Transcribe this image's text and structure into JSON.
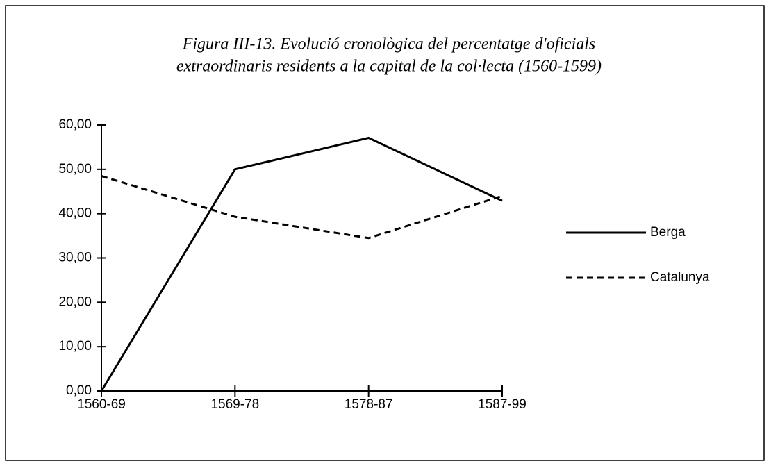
{
  "chart_data": {
    "type": "line",
    "title": [
      "Figura III-13. Evolució cronològica del percentatge d'oficials",
      "extraordinaris residents a la capital de la col·lecta (1560-1599)"
    ],
    "categories": [
      "1560-69",
      "1569-78",
      "1578-87",
      "1587-99"
    ],
    "series": [
      {
        "name": "Berga",
        "color": "#000000",
        "dash": "none",
        "values": [
          0,
          50,
          57.1,
          42.9
        ]
      },
      {
        "name": "Catalunya",
        "color": "#000000",
        "dash": "dashed",
        "values": [
          48.5,
          39.3,
          34.5,
          44
        ]
      }
    ],
    "ylim": [
      0,
      60
    ],
    "yticks": [
      {
        "value": 0,
        "label": "0,00"
      },
      {
        "value": 10,
        "label": "10,00"
      },
      {
        "value": 20,
        "label": "20,00"
      },
      {
        "value": 30,
        "label": "30,00"
      },
      {
        "value": 40,
        "label": "40,00"
      },
      {
        "value": 50,
        "label": "50,00"
      },
      {
        "value": 60,
        "label": "60,00"
      }
    ],
    "grid": false,
    "legend": "right"
  }
}
